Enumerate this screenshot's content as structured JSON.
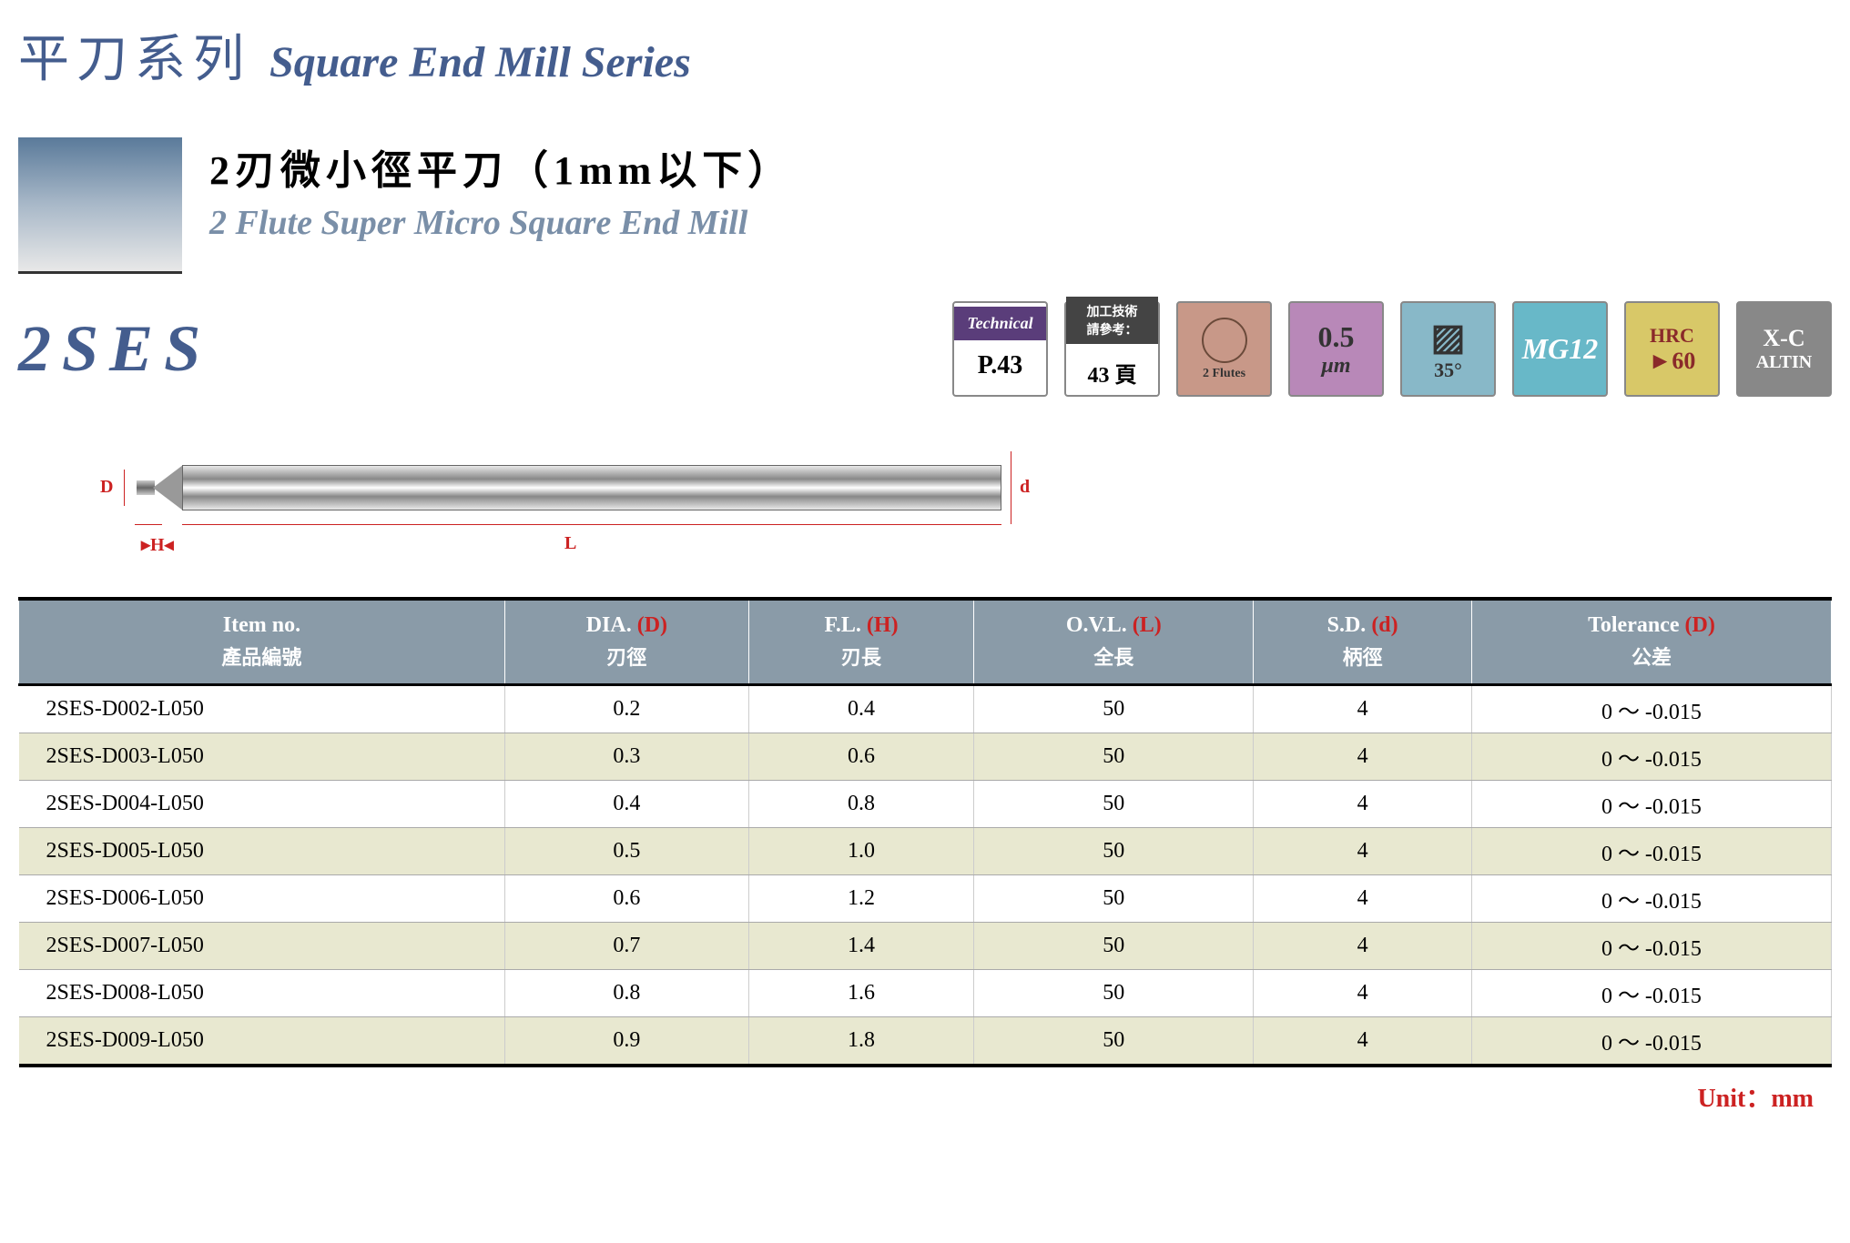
{
  "header": {
    "cn_title": "平刀系列",
    "en_title": "Square End Mill Series"
  },
  "subtitle": {
    "cn": "2刃微小徑平刀（1mm以下）",
    "en": "2 Flute Super Micro Square End Mill"
  },
  "product_code": "2SES",
  "badges": {
    "technical": {
      "label": "Technical",
      "page": "P.43"
    },
    "page_ref": {
      "top": "加工技術\n請參考：",
      "bottom": "43 頁"
    },
    "flutes": {
      "count": "2",
      "label": "Flutes"
    },
    "micron": {
      "value": "0.5",
      "unit": "μm"
    },
    "angle": {
      "value": "35°"
    },
    "mg": {
      "label": "MG12"
    },
    "hrc": {
      "top": "HRC",
      "bottom": "►60"
    },
    "coating": {
      "top": "X-C",
      "bottom": "ALTIN"
    }
  },
  "diagram": {
    "d_left": "D",
    "d_right": "d",
    "h": "H",
    "l": "L"
  },
  "table": {
    "columns": [
      {
        "en": "Item no.",
        "cn": "產品編號",
        "red": ""
      },
      {
        "en": "DIA.",
        "cn": "刃徑",
        "red": "(D)"
      },
      {
        "en": "F.L.",
        "cn": "刃長",
        "red": "(H)"
      },
      {
        "en": "O.V.L.",
        "cn": "全長",
        "red": "(L)"
      },
      {
        "en": "S.D.",
        "cn": "柄徑",
        "red": "(d)"
      },
      {
        "en": "Tolerance",
        "cn": "公差",
        "red": "(D)"
      }
    ],
    "rows": [
      [
        "2SES-D002-L050",
        "0.2",
        "0.4",
        "50",
        "4",
        "0 ～ -0.015"
      ],
      [
        "2SES-D003-L050",
        "0.3",
        "0.6",
        "50",
        "4",
        "0 ～ -0.015"
      ],
      [
        "2SES-D004-L050",
        "0.4",
        "0.8",
        "50",
        "4",
        "0 ～ -0.015"
      ],
      [
        "2SES-D005-L050",
        "0.5",
        "1.0",
        "50",
        "4",
        "0 ～ -0.015"
      ],
      [
        "2SES-D006-L050",
        "0.6",
        "1.2",
        "50",
        "4",
        "0 ～ -0.015"
      ],
      [
        "2SES-D007-L050",
        "0.7",
        "1.4",
        "50",
        "4",
        "0 ～ -0.015"
      ],
      [
        "2SES-D008-L050",
        "0.8",
        "1.6",
        "50",
        "4",
        "0 ～ -0.015"
      ],
      [
        "2SES-D009-L050",
        "0.9",
        "1.8",
        "50",
        "4",
        "0 ～ -0.015"
      ]
    ]
  },
  "unit_label": "Unit：mm",
  "colors": {
    "title_blue": "#445d8e",
    "subtitle_gray": "#7a8fa8",
    "table_header_bg": "#8a9ba8",
    "row_alt_bg": "#e8e8d0",
    "red_accent": "#c22"
  }
}
